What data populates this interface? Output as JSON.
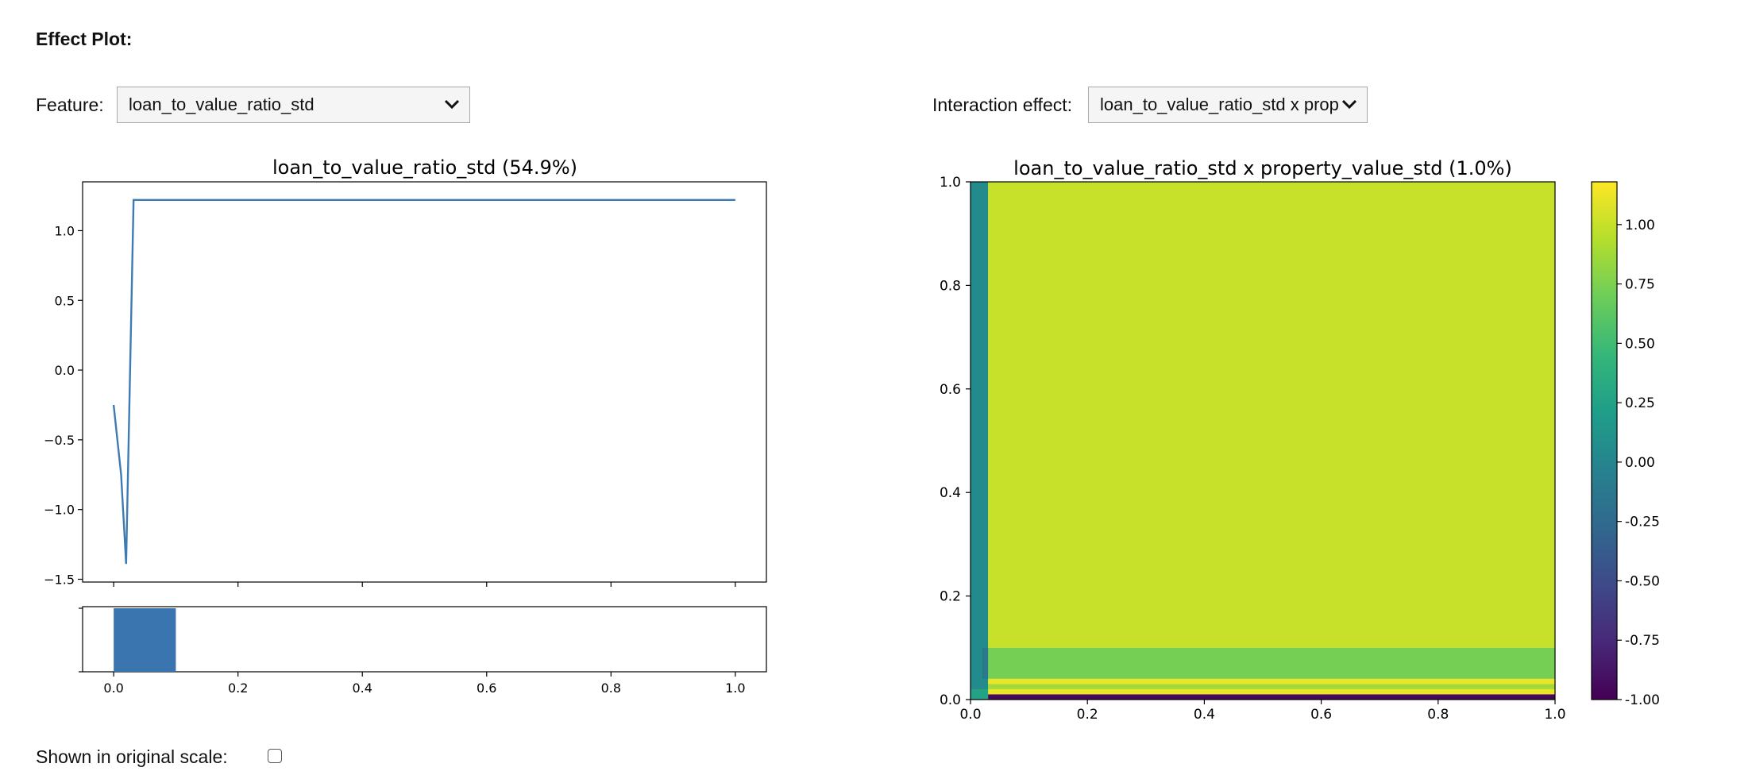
{
  "header": {
    "title": "Effect Plot:"
  },
  "controls": {
    "feature_label": "Feature:",
    "feature_value": "loan_to_value_ratio_std",
    "interaction_label": "Interaction effect:",
    "interaction_value": "loan_to_value_ratio_std x property_value_std"
  },
  "footer": {
    "original_scale_label": "Shown in original scale:",
    "original_scale_checked": false
  },
  "colors": {
    "line": "#3e7bb3",
    "bar": "#3a75b0",
    "heat_high": "#dbe04b"
  },
  "chart_data": [
    {
      "type": "line",
      "title": "loan_to_value_ratio_std (54.9%)",
      "xlabel": "",
      "ylabel": "",
      "x": [
        0.0,
        0.012,
        0.02,
        0.032,
        1.0
      ],
      "y": [
        -0.25,
        -0.75,
        -1.39,
        1.22,
        1.22
      ],
      "xlim": [
        -0.05,
        1.05
      ],
      "ylim": [
        -1.52,
        1.35
      ],
      "xticks": [
        "0.0",
        "0.2",
        "0.4",
        "0.6",
        "0.8",
        "1.0"
      ],
      "yticks": [
        "−1.5",
        "−1.0",
        "−0.5",
        "0.0",
        "0.5",
        "1.0"
      ],
      "grid": false
    },
    {
      "type": "bar",
      "title": "",
      "bins": [
        [
          0.0,
          0.1
        ]
      ],
      "values": [
        1.0
      ],
      "xlim": [
        -0.05,
        1.05
      ],
      "xticks": [
        "0.0",
        "0.2",
        "0.4",
        "0.6",
        "0.8",
        "1.0"
      ]
    },
    {
      "type": "heatmap",
      "title": "loan_to_value_ratio_std x property_value_std (1.0%)",
      "xlabel": "",
      "ylabel": "",
      "xlim": [
        0,
        1
      ],
      "ylim": [
        0,
        1
      ],
      "xticks": [
        "0.0",
        "0.2",
        "0.4",
        "0.6",
        "0.8",
        "1.0"
      ],
      "yticks": [
        "0.0",
        "0.2",
        "0.4",
        "0.6",
        "0.8",
        "1.0"
      ],
      "cells": [
        {
          "x": [
            0.03,
            1.0
          ],
          "y": [
            0.1,
            1.0
          ],
          "value": 1.0
        },
        {
          "x": [
            0.03,
            1.0
          ],
          "y": [
            0.04,
            0.1
          ],
          "value": 0.72
        },
        {
          "x": [
            0.03,
            1.0
          ],
          "y": [
            0.03,
            0.04
          ],
          "value": 1.12
        },
        {
          "x": [
            0.03,
            1.0
          ],
          "y": [
            0.02,
            0.03
          ],
          "value": 0.88
        },
        {
          "x": [
            0.03,
            1.0
          ],
          "y": [
            0.01,
            0.02
          ],
          "value": 1.12
        },
        {
          "x": [
            0.03,
            1.0
          ],
          "y": [
            0.0,
            0.01
          ],
          "value": -0.95
        },
        {
          "x": [
            0.0,
            0.03
          ],
          "y": [
            0.0,
            1.0
          ],
          "value": 0.05
        },
        {
          "x": [
            0.02,
            0.03
          ],
          "y": [
            0.04,
            0.1
          ],
          "value": -0.12
        },
        {
          "x": [
            0.0,
            0.03
          ],
          "y": [
            0.0,
            0.02
          ],
          "value": 0.25
        }
      ],
      "colorbar": {
        "range": [
          -1.0,
          1.18
        ],
        "ticks": [
          "1.00",
          "0.75",
          "0.50",
          "0.25",
          "0.00",
          "-0.25",
          "-0.50",
          "-0.75",
          "-1.00"
        ],
        "tick_values": [
          1.0,
          0.75,
          0.5,
          0.25,
          0.0,
          -0.25,
          -0.5,
          -0.75,
          -1.0
        ],
        "colormap": "viridis"
      }
    }
  ]
}
